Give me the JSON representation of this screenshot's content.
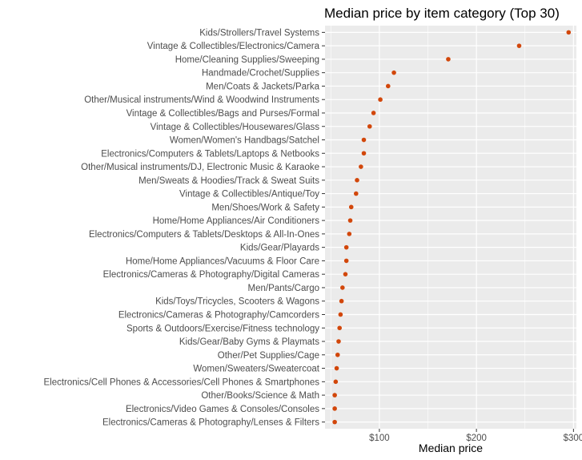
{
  "chart_data": {
    "type": "scatter",
    "title": "Median price by item category (Top 30)",
    "xlabel": "Median price",
    "ylabel": "",
    "xlim": [
      44,
      303
    ],
    "x_ticks": [
      100,
      200,
      300
    ],
    "x_tick_labels": [
      "$100",
      "$200",
      "$300"
    ],
    "grid": true,
    "legend": "none",
    "point_color": "#d2470b",
    "panel_color": "#ebebeb",
    "grid_color": "#ffffff",
    "categories": [
      "Kids/Strollers/Travel Systems",
      "Vintage & Collectibles/Electronics/Camera",
      "Home/Cleaning Supplies/Sweeping",
      "Handmade/Crochet/Supplies",
      "Men/Coats & Jackets/Parka",
      "Other/Musical instruments/Wind & Woodwind Instruments",
      "Vintage & Collectibles/Bags and Purses/Formal",
      "Vintage & Collectibles/Housewares/Glass",
      "Women/Women's Handbags/Satchel",
      "Electronics/Computers & Tablets/Laptops & Netbooks",
      "Other/Musical instruments/DJ, Electronic Music & Karaoke",
      "Men/Sweats & Hoodies/Track & Sweat Suits",
      "Vintage & Collectibles/Antique/Toy",
      "Men/Shoes/Work & Safety",
      "Home/Home Appliances/Air Conditioners",
      "Electronics/Computers & Tablets/Desktops & All-In-Ones",
      "Kids/Gear/Playards",
      "Home/Home Appliances/Vacuums & Floor Care",
      "Electronics/Cameras & Photography/Digital Cameras",
      "Men/Pants/Cargo",
      "Kids/Toys/Tricycles, Scooters & Wagons",
      "Electronics/Cameras & Photography/Camcorders",
      "Sports & Outdoors/Exercise/Fitness technology",
      "Kids/Gear/Baby Gyms & Playmats",
      "Other/Pet Supplies/Cage",
      "Women/Sweaters/Sweatercoat",
      "Electronics/Cell Phones & Accessories/Cell Phones & Smartphones",
      "Other/Books/Science & Math",
      "Electronics/Video Games & Consoles/Consoles",
      "Electronics/Cameras & Photography/Lenses & Filters"
    ],
    "values": [
      295,
      244,
      171,
      115,
      109,
      101,
      94,
      90,
      84,
      84,
      81,
      77,
      76,
      71,
      70,
      69,
      66,
      66,
      65,
      62,
      61,
      60,
      59,
      58,
      57,
      56,
      55,
      54,
      54,
      54
    ]
  }
}
